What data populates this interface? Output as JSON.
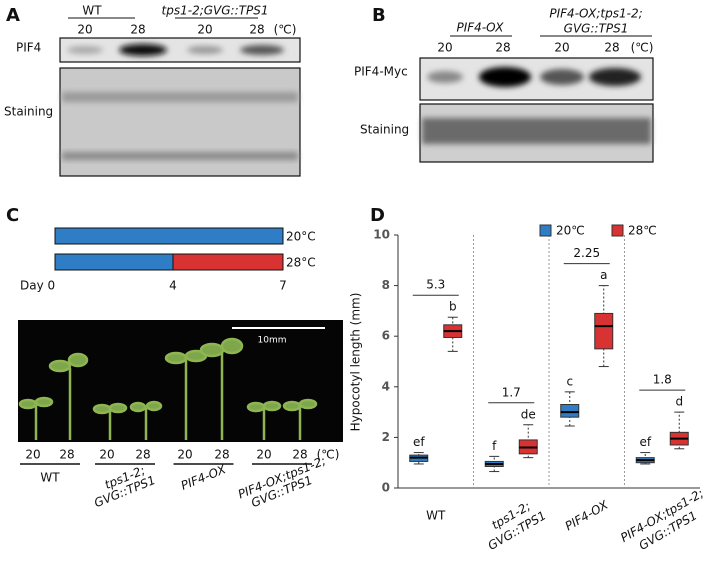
{
  "panel_a": {
    "label": "A",
    "groups": [
      "WT",
      "tps1-2;GVG::TPS1"
    ],
    "temperatures": [
      "20",
      "28",
      "20",
      "28"
    ],
    "unit": "(℃)",
    "rows": [
      "PIF4",
      "Staining"
    ]
  },
  "panel_b": {
    "label": "B",
    "groups": [
      [
        "PIF4-OX"
      ],
      [
        "PIF4-OX;tps1-2;",
        "GVG::TPS1"
      ]
    ],
    "temperatures": [
      "20",
      "28",
      "20",
      "28"
    ],
    "unit": "(℃)",
    "rows": [
      "PIF4-Myc",
      "Staining"
    ]
  },
  "panel_c": {
    "label": "C",
    "schedule": [
      "20°C",
      "28°C"
    ],
    "days": [
      "Day 0",
      "4",
      "7"
    ],
    "scale_bar": "10mm",
    "temperatures": [
      "20",
      "28",
      "20",
      "28",
      "20",
      "28",
      "20",
      "28"
    ],
    "unit": "(℃)",
    "genotypes": [
      [
        "WT"
      ],
      [
        "tps1-2;",
        "GVG::TPS1"
      ],
      [
        "PIF4-OX"
      ],
      [
        "PIF4-OX;tps1-2;",
        "GVG::TPS1"
      ]
    ]
  },
  "chart_data": {
    "type": "box",
    "panel_label": "D",
    "ylabel": "Hypocotyl length (mm)",
    "categories": [
      [
        "WT"
      ],
      [
        "tps1-2;",
        "GVG::TPS1"
      ],
      [
        "PIF4-OX"
      ],
      [
        "PIF4-OX;tps1-2;",
        "GVG::TPS1"
      ]
    ],
    "ylim": [
      0,
      10
    ],
    "yticks": [
      0,
      2,
      4,
      6,
      8,
      10
    ],
    "series": [
      {
        "name": "20℃",
        "color": "#2f7dc4",
        "low": [
          0.95,
          0.65,
          2.45,
          0.95
        ],
        "q1": [
          1.05,
          0.85,
          2.8,
          1.0
        ],
        "median": [
          1.2,
          0.95,
          3.0,
          1.1
        ],
        "q3": [
          1.3,
          1.05,
          3.3,
          1.2
        ],
        "high": [
          1.4,
          1.25,
          3.8,
          1.4
        ],
        "letters": [
          "ef",
          "f",
          "c",
          "ef"
        ]
      },
      {
        "name": "28℃",
        "color": "#d93232",
        "low": [
          5.4,
          1.2,
          4.8,
          1.55
        ],
        "q1": [
          5.95,
          1.35,
          5.5,
          1.7
        ],
        "median": [
          6.2,
          1.6,
          6.4,
          1.95
        ],
        "q3": [
          6.45,
          1.9,
          6.9,
          2.2
        ],
        "high": [
          6.75,
          2.5,
          8.0,
          3.0
        ],
        "letters": [
          "b",
          "de",
          "a",
          "d"
        ]
      }
    ],
    "ratios": [
      5.3,
      1.7,
      2.25,
      1.8
    ]
  }
}
